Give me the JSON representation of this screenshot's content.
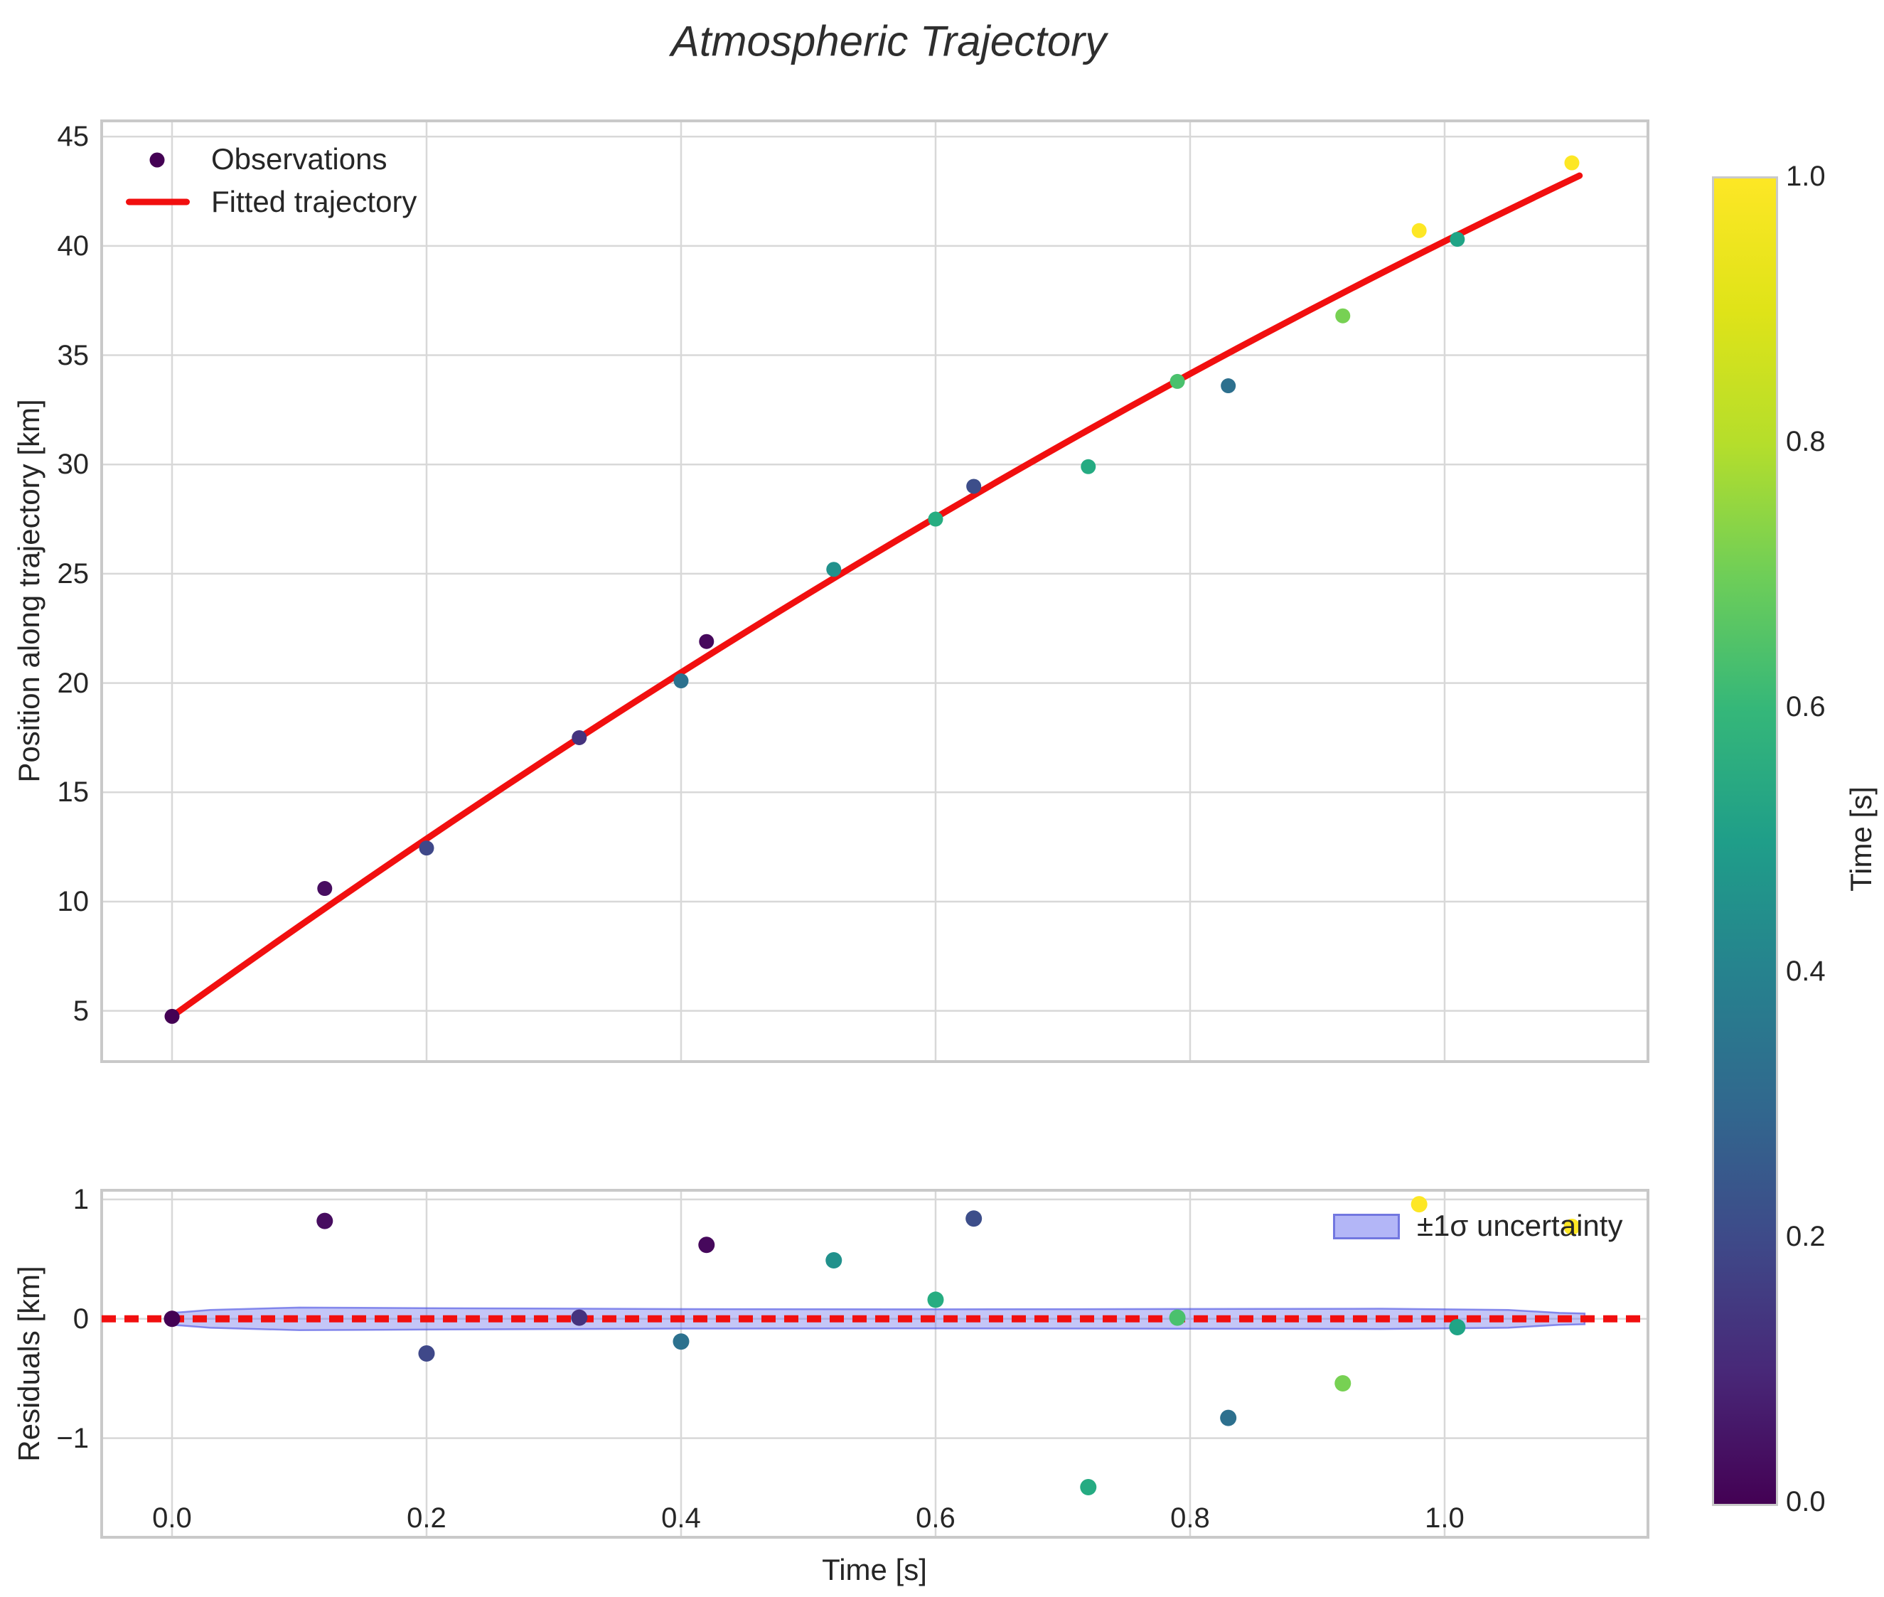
{
  "title": "Atmospheric Trajectory",
  "colors": {
    "fit_red": "#f10f0f",
    "grid": "#d8d8d8",
    "spine": "#c9c9c9",
    "text": "#262626",
    "legend_marker": "#440154",
    "band_fill": "rgba(100,105,235,0.38)",
    "band_edge": "rgba(80,86,228,0.65)",
    "legend_patch_fill": "#b3b6f7",
    "legend_patch_edge": "#7277e0"
  },
  "top_plot": {
    "ylabel": "Position along trajectory [km]",
    "legend": {
      "observations": "Observations",
      "fitted": "Fitted trajectory"
    }
  },
  "residual_plot": {
    "ylabel": "Residuals [km]",
    "xlabel": "Time [s]",
    "legend_band": "±1σ uncertainty"
  },
  "colorbar": {
    "label": "Time [s]",
    "ticks": [
      "1.0",
      "0.8",
      "0.6",
      "0.4",
      "0.2",
      "0.0"
    ],
    "cmap": [
      [
        0,
        "#440154"
      ],
      [
        0.1,
        "#482878"
      ],
      [
        0.2,
        "#3e4a89"
      ],
      [
        0.3,
        "#31688e"
      ],
      [
        0.4,
        "#26828e"
      ],
      [
        0.5,
        "#1f9e89"
      ],
      [
        0.6,
        "#35b779"
      ],
      [
        0.7,
        "#6ece58"
      ],
      [
        0.8,
        "#b5de2b"
      ],
      [
        0.9,
        "#dfe318"
      ],
      [
        1,
        "#fde725"
      ]
    ]
  },
  "chart_data": [
    {
      "id": "trajectory",
      "type": "scatter",
      "title": "Atmospheric Trajectory",
      "xlabel": "",
      "ylabel": "Position along trajectory [km]",
      "xlim": [
        -0.0553,
        1.1598
      ],
      "ylim": [
        2.68,
        45.72
      ],
      "yticks": [
        45,
        40,
        35,
        30,
        25,
        20,
        15,
        10,
        5
      ],
      "xgrid": [
        0.0,
        0.2,
        0.4,
        0.6,
        0.8,
        1.0
      ],
      "grid": true,
      "legend_position": "upper left",
      "points": {
        "t": [
          0.0,
          0.12,
          0.2,
          0.32,
          0.4,
          0.42,
          0.52,
          0.6,
          0.63,
          0.72,
          0.79,
          0.83,
          0.92,
          0.98,
          1.01,
          1.1
        ],
        "pos": [
          4.75,
          10.6,
          12.45,
          17.5,
          20.1,
          21.9,
          25.2,
          27.5,
          29.0,
          29.9,
          33.8,
          33.6,
          36.8,
          40.7,
          40.3,
          43.8
        ],
        "time_colors": [
          "#440154",
          "#470d60",
          "#3f4889",
          "#45337e",
          "#2c718e",
          "#46085c",
          "#21918c",
          "#27ad81",
          "#3d4e8a",
          "#25ab82",
          "#4ac16d",
          "#2d708e",
          "#77d153",
          "#fde725",
          "#20a486",
          "#fde725"
        ]
      },
      "fitted_line": {
        "label": "Fitted trajectory",
        "quad_coeffs": [
          4.75,
          41.9,
          -6.44
        ],
        "t_range": [
          0,
          1.106
        ]
      }
    },
    {
      "id": "residuals",
      "type": "scatter",
      "ylabel": "Residuals [km]",
      "xlabel": "Time [s]",
      "xlim": [
        -0.0553,
        1.1598
      ],
      "ylim": [
        -1.83,
        1.077
      ],
      "yticks_labels": [
        "1",
        "0",
        "−1"
      ],
      "yticks_values": [
        1,
        0,
        -1
      ],
      "xticks_labels": [
        "0.0",
        "0.2",
        "0.4",
        "0.6",
        "0.8",
        "1.0"
      ],
      "xticks_values": [
        0.0,
        0.2,
        0.4,
        0.6,
        0.8,
        1.0
      ],
      "grid": true,
      "zero_line_y": 0,
      "legend_position": "upper right",
      "points": {
        "t": [
          0.0,
          0.12,
          0.2,
          0.32,
          0.4,
          0.42,
          0.52,
          0.6,
          0.63,
          0.72,
          0.79,
          0.83,
          0.92,
          0.98,
          1.01,
          1.1
        ],
        "residual": [
          0.0,
          0.82,
          -0.29,
          0.01,
          -0.19,
          0.62,
          0.49,
          0.16,
          0.84,
          -1.41,
          0.01,
          -0.83,
          -0.54,
          0.96,
          -0.07,
          0.77
        ],
        "time_colors": [
          "#440154",
          "#470d60",
          "#3f4889",
          "#45337e",
          "#2c718e",
          "#46085c",
          "#21918c",
          "#27ad81",
          "#3d4e8a",
          "#25ab82",
          "#4ac16d",
          "#2d708e",
          "#77d153",
          "#fde725",
          "#20a486",
          "#fde725"
        ]
      },
      "uncertainty_band": {
        "label": "±1σ uncertainty",
        "t": [
          0.0,
          0.03,
          0.1,
          0.2,
          0.4,
          0.6,
          0.8,
          0.95,
          1.05,
          1.09,
          1.11
        ],
        "half_width": [
          0.05,
          0.075,
          0.095,
          0.09,
          0.082,
          0.08,
          0.083,
          0.085,
          0.075,
          0.05,
          0.045
        ]
      }
    }
  ]
}
